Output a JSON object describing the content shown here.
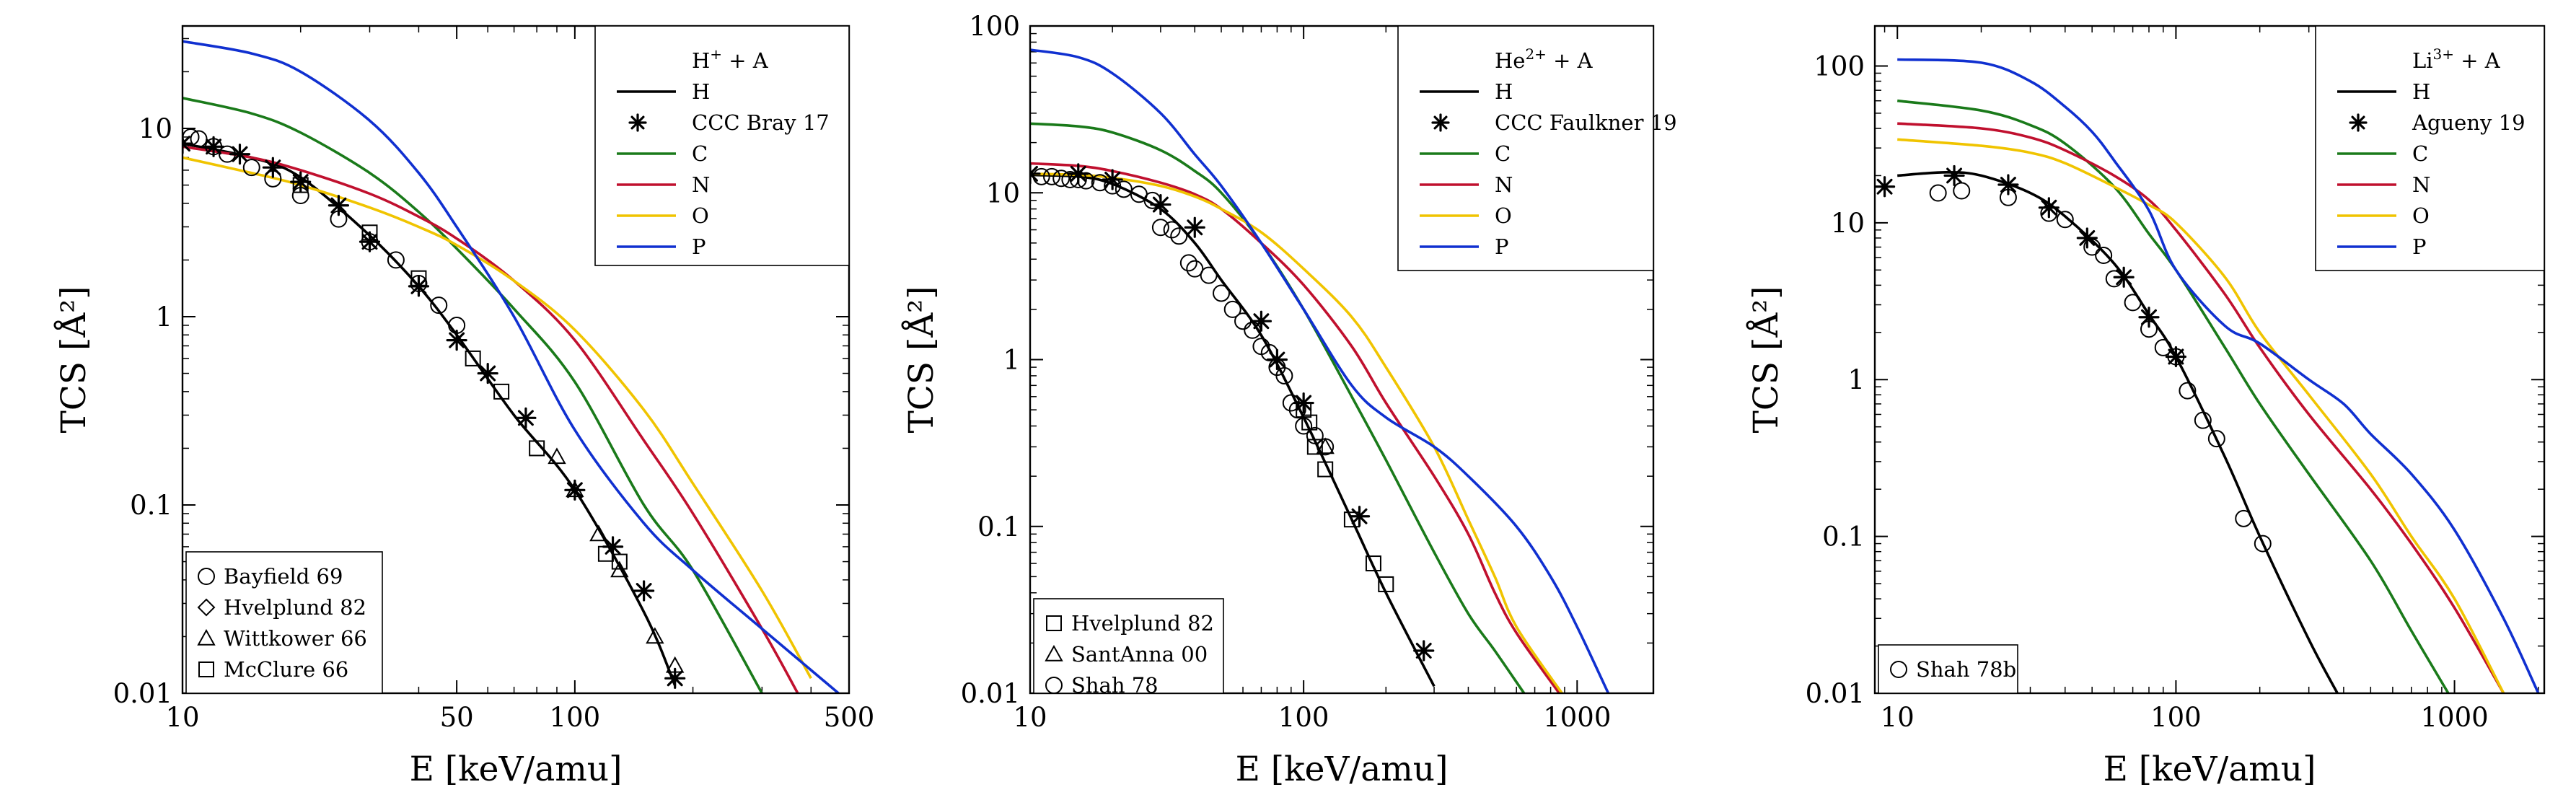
{
  "chart_data": [
    {
      "type": "line",
      "log_x": true,
      "log_y": true,
      "xlabel": "E [keV/amu]",
      "ylabel": "TCS [Å²]",
      "xlim": [
        10,
        500
      ],
      "ylim": [
        0.01,
        35
      ],
      "x_ticks": [
        {
          "value": 10,
          "label": "10"
        },
        {
          "value": 50,
          "label": "50"
        },
        {
          "value": 100,
          "label": "100"
        },
        {
          "value": 500,
          "label": "500"
        }
      ],
      "y_ticks": [
        {
          "value": 0.01,
          "label": "0.01"
        },
        {
          "value": 0.1,
          "label": "0.1"
        },
        {
          "value": 1,
          "label": "1"
        },
        {
          "value": 10,
          "label": "10"
        }
      ],
      "legend_title": {
        "base": "H",
        "sup": "+",
        "rest": " + A"
      },
      "legend_position": "top-right",
      "series": [
        {
          "name": "H",
          "color": "#000000",
          "x": [
            10,
            15,
            20,
            30,
            40,
            50,
            70,
            100,
            150,
            180
          ],
          "y": [
            8.3,
            7.0,
            5.5,
            2.7,
            1.45,
            0.8,
            0.3,
            0.12,
            0.027,
            0.011
          ]
        },
        {
          "name": "C",
          "color": "#1a7a1a",
          "x": [
            10,
            15,
            20,
            30,
            40,
            50,
            70,
            100,
            150,
            200,
            300
          ],
          "y": [
            14.5,
            12.0,
            9.5,
            5.8,
            3.6,
            2.3,
            1.1,
            0.45,
            0.1,
            0.045,
            0.01
          ]
        },
        {
          "name": "N",
          "color": "#c0102e",
          "x": [
            10,
            15,
            20,
            30,
            40,
            50,
            70,
            100,
            150,
            200,
            300,
            370
          ],
          "y": [
            8.0,
            7.0,
            6.0,
            4.5,
            3.4,
            2.6,
            1.55,
            0.75,
            0.22,
            0.09,
            0.022,
            0.01
          ]
        },
        {
          "name": "O",
          "color": "#f0c400",
          "x": [
            10,
            15,
            20,
            30,
            40,
            50,
            70,
            100,
            150,
            200,
            300,
            400
          ],
          "y": [
            7.0,
            5.8,
            5.0,
            3.8,
            3.0,
            2.4,
            1.55,
            0.85,
            0.32,
            0.13,
            0.035,
            0.012
          ]
        },
        {
          "name": "P",
          "color": "#1030d0",
          "x": [
            10,
            15,
            20,
            30,
            40,
            50,
            70,
            100,
            150,
            200,
            300,
            470
          ],
          "y": [
            29,
            25,
            20,
            11,
            5.8,
            3.0,
            1.0,
            0.25,
            0.08,
            0.045,
            0.022,
            0.01
          ]
        }
      ],
      "reference_series": {
        "name": "CCC Bray 17",
        "x": [
          10,
          12,
          14,
          17,
          20,
          25,
          30,
          40,
          50,
          60,
          75,
          100,
          125,
          150,
          180
        ],
        "y": [
          8.3,
          8.0,
          7.3,
          6.2,
          5.2,
          3.9,
          2.5,
          1.45,
          0.75,
          0.5,
          0.29,
          0.12,
          0.06,
          0.035,
          0.012
        ]
      },
      "experiments": [
        {
          "name": "Bayfield 69",
          "marker": "circle",
          "x": [
            10.5,
            11,
            12,
            13,
            15,
            17,
            20,
            25,
            30,
            35,
            40,
            45,
            50
          ],
          "y": [
            9,
            8.8,
            8.0,
            7.3,
            6.2,
            5.4,
            4.4,
            3.3,
            2.5,
            2.0,
            1.5,
            1.15,
            0.9
          ]
        },
        {
          "name": "Hvelplund 82",
          "marker": "diamond",
          "x": [],
          "y": []
        },
        {
          "name": "Wittkower 66",
          "marker": "triangle",
          "x": [
            90,
            100,
            115,
            130,
            160,
            180
          ],
          "y": [
            0.18,
            0.12,
            0.07,
            0.045,
            0.02,
            0.014
          ]
        },
        {
          "name": "McClure 66",
          "marker": "square",
          "x": [
            20,
            30,
            40,
            55,
            65,
            80,
            120,
            130
          ],
          "y": [
            5.0,
            2.8,
            1.6,
            0.6,
            0.4,
            0.2,
            0.055,
            0.05
          ]
        }
      ]
    },
    {
      "type": "line",
      "log_x": true,
      "log_y": true,
      "xlabel": "E [keV/amu]",
      "ylabel": "TCS [Å²]",
      "xlim": [
        10,
        1900
      ],
      "ylim": [
        0.01,
        100
      ],
      "x_ticks": [
        {
          "value": 10,
          "label": "10"
        },
        {
          "value": 100,
          "label": "100"
        },
        {
          "value": 1000,
          "label": "1000"
        }
      ],
      "y_ticks": [
        {
          "value": 0.01,
          "label": "0.01"
        },
        {
          "value": 0.1,
          "label": "0.1"
        },
        {
          "value": 1,
          "label": "1"
        },
        {
          "value": 10,
          "label": "10"
        },
        {
          "value": 100,
          "label": "100"
        }
      ],
      "legend_title": {
        "base": "He",
        "sup": "2+",
        "rest": " + A"
      },
      "legend_position": "top-right",
      "series": [
        {
          "name": "H",
          "color": "#000000",
          "x": [
            10,
            15,
            20,
            30,
            40,
            50,
            70,
            100,
            150,
            200,
            300
          ],
          "y": [
            12.8,
            12.5,
            11.3,
            8.0,
            5.0,
            3.0,
            1.4,
            0.45,
            0.11,
            0.04,
            0.011
          ]
        },
        {
          "name": "C",
          "color": "#1a7a1a",
          "x": [
            10,
            15,
            20,
            30,
            40,
            50,
            70,
            100,
            150,
            200,
            300,
            400,
            500,
            640
          ],
          "y": [
            26,
            25,
            23,
            18,
            13.5,
            10,
            5,
            2.0,
            0.6,
            0.25,
            0.07,
            0.03,
            0.018,
            0.01
          ]
        },
        {
          "name": "N",
          "color": "#c0102e",
          "x": [
            10,
            15,
            20,
            30,
            40,
            50,
            70,
            100,
            150,
            200,
            300,
            400,
            500,
            600,
            860
          ],
          "y": [
            15,
            14.5,
            13.5,
            11.5,
            9.8,
            8.0,
            5.0,
            2.8,
            1.2,
            0.55,
            0.2,
            0.09,
            0.04,
            0.023,
            0.01
          ]
        },
        {
          "name": "O",
          "color": "#f0c400",
          "x": [
            10,
            15,
            20,
            30,
            40,
            50,
            70,
            100,
            150,
            200,
            300,
            400,
            500,
            600,
            880
          ],
          "y": [
            13,
            12.8,
            12.3,
            11,
            9.5,
            8.0,
            5.8,
            3.5,
            1.8,
            0.9,
            0.3,
            0.11,
            0.05,
            0.025,
            0.01
          ]
        },
        {
          "name": "P",
          "color": "#1030d0",
          "x": [
            10,
            15,
            20,
            30,
            40,
            50,
            70,
            100,
            150,
            200,
            300,
            400,
            600,
            800,
            1000,
            1300
          ],
          "y": [
            72,
            65,
            52,
            30,
            17,
            11,
            5.0,
            2.0,
            0.7,
            0.45,
            0.3,
            0.2,
            0.1,
            0.05,
            0.025,
            0.01
          ]
        }
      ],
      "reference_series": {
        "name": "CCC Faulkner 19",
        "x": [
          10,
          15,
          20,
          30,
          40,
          70,
          80,
          100,
          160,
          275
        ],
        "y": [
          13,
          13,
          12,
          8.5,
          6.2,
          1.7,
          1.0,
          0.55,
          0.115,
          0.018
        ]
      },
      "experiments": [
        {
          "name": "Hvelplund 82",
          "marker": "square",
          "x": [
            100,
            105,
            110,
            120,
            150,
            180,
            200
          ],
          "y": [
            0.5,
            0.42,
            0.3,
            0.22,
            0.11,
            0.06,
            0.045
          ]
        },
        {
          "name": "SantAnna 00",
          "marker": "triangle",
          "x": [
            120,
            300
          ],
          "y": [
            0.3,
            0.009
          ]
        },
        {
          "name": "Shah 78",
          "marker": "circle",
          "x": [
            11,
            12,
            13,
            14,
            15,
            16,
            18,
            20,
            22,
            25,
            28,
            30,
            33,
            35,
            38,
            40,
            45,
            50,
            55,
            60,
            65,
            70,
            75,
            80,
            85,
            90,
            95,
            100,
            110,
            120
          ],
          "y": [
            12.5,
            12.5,
            12.2,
            12.0,
            12.0,
            11.8,
            11.5,
            11.0,
            10.5,
            9.8,
            9.0,
            6.2,
            6.0,
            5.5,
            3.8,
            3.5,
            3.2,
            2.5,
            2.0,
            1.7,
            1.5,
            1.2,
            1.1,
            0.9,
            0.8,
            0.55,
            0.5,
            0.4,
            0.35,
            0.3
          ]
        }
      ]
    },
    {
      "type": "line",
      "log_x": true,
      "log_y": true,
      "xlabel": "E [keV/amu]",
      "ylabel": "TCS [Å²]",
      "xlim": [
        8.3,
        2100
      ],
      "ylim": [
        0.01,
        180
      ],
      "x_ticks": [
        {
          "value": 10,
          "label": "10"
        },
        {
          "value": 100,
          "label": "100"
        },
        {
          "value": 1000,
          "label": "1000"
        }
      ],
      "y_ticks": [
        {
          "value": 0.01,
          "label": "0.01"
        },
        {
          "value": 0.1,
          "label": "0.1"
        },
        {
          "value": 1,
          "label": "1"
        },
        {
          "value": 10,
          "label": "10"
        },
        {
          "value": 100,
          "label": "100"
        }
      ],
      "legend_title": {
        "base": "Li",
        "sup": "3+",
        "rest": " + A"
      },
      "legend_position": "top-right",
      "series": [
        {
          "name": "H",
          "color": "#000000",
          "x": [
            10,
            15,
            20,
            30,
            40,
            60,
            80,
            100,
            150,
            200,
            300,
            380
          ],
          "y": [
            20,
            21,
            20,
            15.5,
            11,
            5.5,
            2.6,
            1.4,
            0.32,
            0.1,
            0.022,
            0.01
          ]
        },
        {
          "name": "C",
          "color": "#1a7a1a",
          "x": [
            10,
            20,
            30,
            40,
            60,
            80,
            100,
            150,
            200,
            300,
            500,
            700,
            950
          ],
          "y": [
            60,
            52,
            42,
            32,
            17,
            8.5,
            5.0,
            1.6,
            0.7,
            0.25,
            0.07,
            0.025,
            0.01
          ]
        },
        {
          "name": "N",
          "color": "#c0102e",
          "x": [
            10,
            20,
            30,
            40,
            60,
            80,
            100,
            150,
            200,
            300,
            500,
            700,
            1000,
            1500
          ],
          "y": [
            43,
            40,
            35,
            29,
            20,
            14,
            9.0,
            3.5,
            1.6,
            0.6,
            0.2,
            0.09,
            0.035,
            0.01
          ]
        },
        {
          "name": "O",
          "color": "#f0c400",
          "x": [
            10,
            20,
            30,
            40,
            60,
            80,
            100,
            150,
            200,
            300,
            500,
            700,
            1000,
            1500
          ],
          "y": [
            34,
            31,
            28,
            24,
            17,
            13,
            10,
            4.5,
            2.0,
            0.8,
            0.25,
            0.1,
            0.04,
            0.01
          ]
        },
        {
          "name": "P",
          "color": "#1030d0",
          "x": [
            10,
            20,
            30,
            40,
            50,
            60,
            80,
            100,
            150,
            200,
            300,
            400,
            500,
            700,
            1000,
            1500,
            2000
          ],
          "y": [
            110,
            105,
            80,
            55,
            38,
            25,
            12,
            5.0,
            2.2,
            1.7,
            1.0,
            0.7,
            0.45,
            0.25,
            0.11,
            0.03,
            0.01
          ]
        }
      ],
      "reference_series": {
        "name": "Agueny 19",
        "x": [
          9,
          16,
          25,
          35,
          48,
          65,
          80,
          100
        ],
        "y": [
          17,
          20,
          17.5,
          12.5,
          8.0,
          4.5,
          2.5,
          1.4
        ]
      },
      "experiments": [
        {
          "name": "Shah 78b",
          "marker": "circle",
          "x": [
            14,
            17,
            25,
            35,
            40,
            50,
            55,
            60,
            70,
            80,
            90,
            100,
            110,
            125,
            140,
            175,
            205
          ],
          "y": [
            15.5,
            16,
            14.5,
            11.5,
            10.5,
            7.0,
            6.2,
            4.4,
            3.1,
            2.1,
            1.6,
            1.4,
            0.85,
            0.55,
            0.42,
            0.13,
            0.09
          ]
        }
      ]
    }
  ]
}
